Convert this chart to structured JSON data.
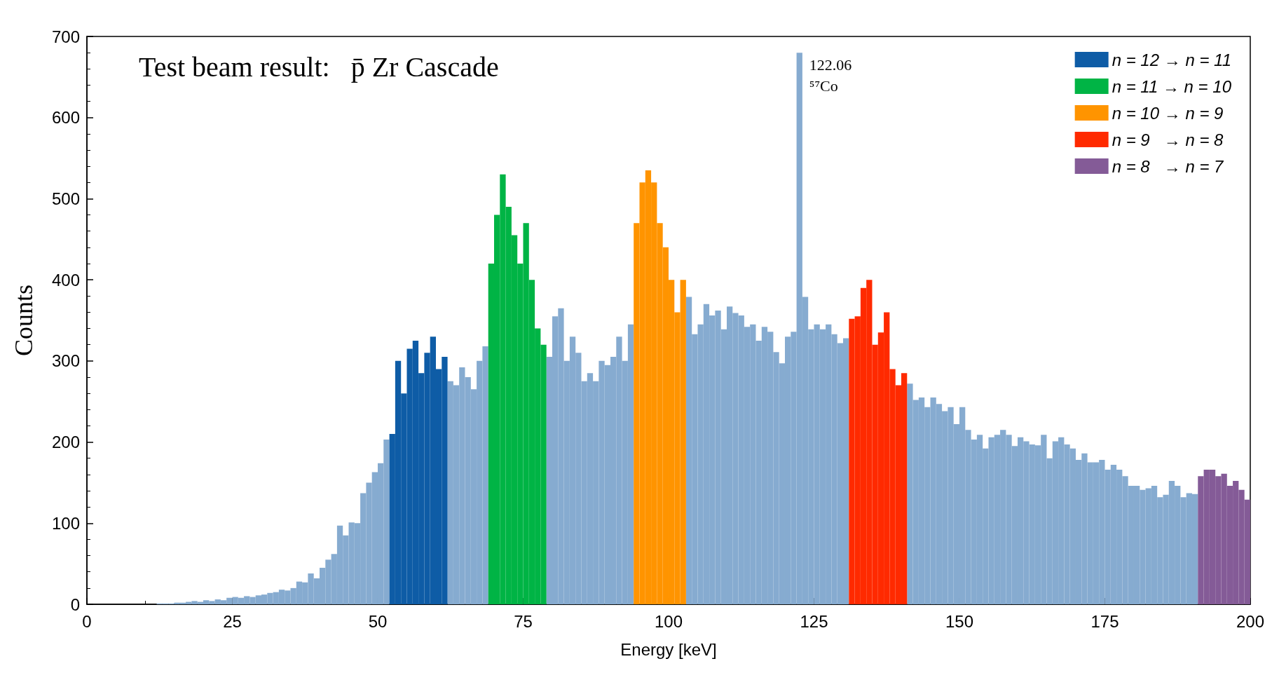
{
  "chart_data": {
    "type": "bar",
    "title": "Test beam result:   p̄ Zr Cascade",
    "xlabel": "Energy [keV]",
    "ylabel": "Counts",
    "annotations": [
      {
        "text": "122.06\n⁵⁷Co",
        "x": 122.5,
        "y": 680
      }
    ],
    "xlim": [
      0,
      200
    ],
    "xticks": [
      0,
      25,
      50,
      75,
      100,
      125,
      150,
      175,
      200
    ],
    "ylim": [
      0,
      700
    ],
    "yticks": [
      0,
      100,
      200,
      300,
      400,
      500,
      600,
      700
    ],
    "grid": false,
    "legend": "top right",
    "series": [
      {
        "color": "#86abd0",
        "x": [
          0.5,
          1.5,
          2.5,
          3.5,
          4.5,
          5.5,
          6.5,
          7.5,
          8.5,
          9.5,
          10.5,
          11.5,
          12.5,
          13.5,
          14.5,
          15.5,
          16.5,
          17.5,
          18.5,
          19.5,
          20.5,
          21.5,
          22.5,
          23.5,
          24.5,
          25.5,
          26.5,
          27.5,
          28.5,
          29.5,
          30.5,
          31.5,
          32.5,
          33.5,
          34.5,
          35.5,
          36.5,
          37.5,
          38.5,
          39.5,
          40.5,
          41.5,
          42.5,
          43.5,
          44.5,
          45.5,
          46.5,
          47.5,
          48.5,
          49.5,
          50.5,
          51.5,
          62.5,
          63.5,
          64.5,
          65.5,
          66.5,
          67.5,
          68.5,
          79.5,
          80.5,
          81.5,
          82.5,
          83.5,
          84.5,
          85.5,
          86.5,
          87.5,
          88.5,
          89.5,
          90.5,
          91.5,
          92.5,
          93.5,
          103.5,
          104.5,
          105.5,
          106.5,
          107.5,
          108.5,
          109.5,
          110.5,
          111.5,
          112.5,
          113.5,
          114.5,
          115.5,
          116.5,
          117.5,
          118.5,
          119.5,
          120.5,
          121.5,
          122.5,
          123.5,
          124.5,
          125.5,
          126.5,
          127.5,
          128.5,
          129.5,
          130.5,
          141.5,
          142.5,
          143.5,
          144.5,
          145.5,
          146.5,
          147.5,
          148.5,
          149.5,
          150.5,
          151.5,
          152.5,
          153.5,
          154.5,
          155.5,
          156.5,
          157.5,
          158.5,
          159.5,
          160.5,
          161.5,
          162.5,
          163.5,
          164.5,
          165.5,
          166.5,
          167.5,
          168.5,
          169.5,
          170.5,
          171.5,
          172.5,
          173.5,
          174.5,
          175.5,
          176.5,
          177.5,
          178.5,
          179.5,
          180.5,
          181.5,
          182.5,
          183.5,
          184.5,
          185.5,
          186.5,
          187.5,
          188.5,
          189.5,
          190.5
        ],
        "values": [
          0,
          0,
          0,
          0,
          0,
          0,
          0,
          0,
          0,
          0,
          0,
          0,
          1,
          1,
          1,
          2,
          2,
          3,
          4,
          3,
          5,
          4,
          6,
          5,
          8,
          9,
          8,
          10,
          9,
          11,
          12,
          14,
          15,
          18,
          17,
          20,
          28,
          27,
          38,
          32,
          45,
          55,
          62,
          97,
          85,
          101,
          100,
          137,
          150,
          163,
          174,
          203,
          275,
          270,
          292,
          280,
          265,
          300,
          318,
          305,
          355,
          365,
          300,
          330,
          310,
          275,
          285,
          275,
          300,
          295,
          305,
          330,
          300,
          345,
          379,
          333,
          345,
          370,
          356,
          362,
          339,
          367,
          359,
          356,
          342,
          345,
          325,
          342,
          336,
          311,
          297,
          330,
          336,
          680,
          379,
          339,
          345,
          339,
          345,
          333,
          322,
          328,
          272,
          252,
          255,
          243,
          255,
          247,
          238,
          243,
          222,
          243,
          215,
          203,
          209,
          192,
          206,
          209,
          215,
          209,
          195,
          206,
          201,
          197,
          196,
          209,
          180,
          201,
          206,
          197,
          192,
          178,
          186,
          175,
          175,
          178,
          166,
          172,
          166,
          158,
          146,
          146,
          141,
          143,
          146,
          132,
          135,
          152,
          146,
          132,
          137,
          136
        ]
      },
      {
        "name": "n = 12 → n = 11",
        "color": "#0e5ca6",
        "x": [
          52.5,
          53.5,
          54.5,
          55.5,
          56.5,
          57.5,
          58.5,
          59.5,
          60.5,
          61.5
        ],
        "values": [
          210,
          300,
          260,
          315,
          325,
          285,
          310,
          330,
          290,
          305
        ]
      },
      {
        "name": "n = 11 → n = 10",
        "color": "#00b445",
        "x": [
          69.5,
          70.5,
          71.5,
          72.5,
          73.5,
          74.5,
          75.5,
          76.5,
          77.5,
          78.5
        ],
        "values": [
          420,
          480,
          530,
          490,
          455,
          420,
          470,
          400,
          340,
          320
        ]
      },
      {
        "name": "n = 10 → n = 9",
        "color": "#ff9400",
        "x": [
          94.5,
          95.5,
          96.5,
          97.5,
          98.5,
          99.5,
          100.5,
          101.5,
          102.5
        ],
        "values": [
          470,
          520,
          535,
          520,
          470,
          440,
          400,
          360,
          400
        ]
      },
      {
        "name": "n = 9   → n = 8",
        "color": "#ff2a00",
        "x": [
          131.5,
          132.5,
          133.5,
          134.5,
          135.5,
          136.5,
          137.5,
          138.5,
          139.5,
          140.5
        ],
        "values": [
          352,
          355,
          390,
          400,
          320,
          335,
          360,
          290,
          270,
          285
        ]
      },
      {
        "name": "n = 8   → n = 7",
        "color": "#845b97",
        "x": [
          191.5,
          192.5,
          193.5,
          194.5,
          195.5,
          196.5,
          197.5,
          198.5,
          199.5
        ],
        "values": [
          158,
          166,
          166,
          158,
          161,
          146,
          152,
          141,
          129
        ]
      }
    ]
  }
}
